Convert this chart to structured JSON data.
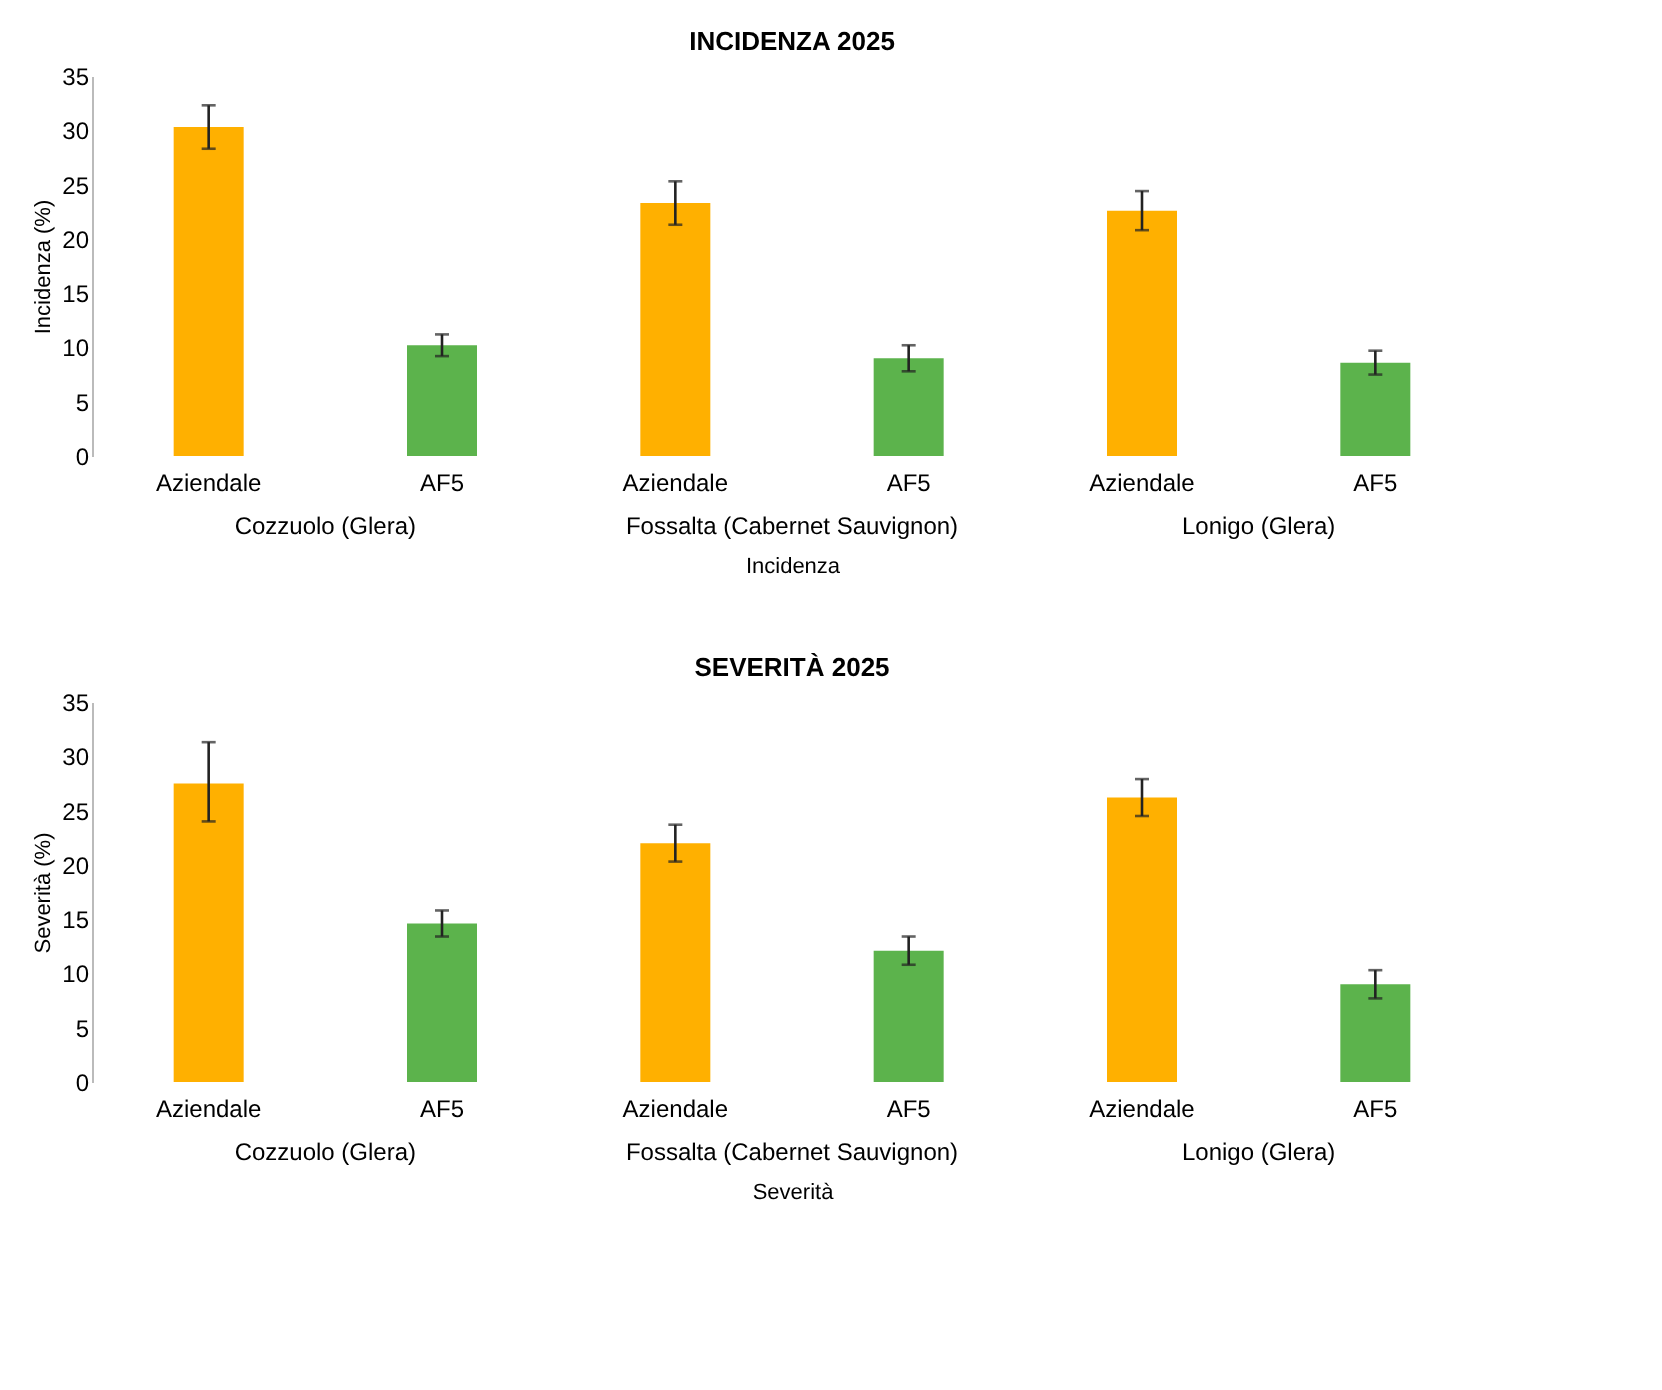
{
  "chart_data": [
    {
      "type": "bar",
      "title": "INCIDENZA 2025",
      "ylabel": "Incidenza (%)",
      "xlabel": "Incidenza",
      "categories": [
        "Aziendale",
        "AF5",
        "Aziendale",
        "AF5",
        "Aziendale",
        "AF5"
      ],
      "values": [
        30.3,
        10.2,
        23.3,
        9.0,
        22.6,
        8.6
      ],
      "errors": [
        2.0,
        1.0,
        2.0,
        1.2,
        1.8,
        1.1
      ],
      "colors": [
        "#ffb000",
        "#5cb34c",
        "#ffb000",
        "#5cb34c",
        "#ffb000",
        "#5cb34c"
      ],
      "annotations": [
        "Cozzuolo (Glera)",
        "Fossalta (Cabernet Sauvignon)",
        "Lonigo (Glera)"
      ],
      "ylim": [
        0,
        35
      ],
      "yticks": [
        0,
        5,
        10,
        15,
        20,
        25,
        30,
        35
      ],
      "grid": false
    },
    {
      "type": "bar",
      "title": "SEVERITÀ 2025",
      "ylabel": "Severità (%)",
      "xlabel": "Severità",
      "categories": [
        "Aziendale",
        "AF5",
        "Aziendale",
        "AF5",
        "Aziendale",
        "AF5"
      ],
      "values": [
        27.5,
        14.6,
        22.0,
        12.1,
        26.2,
        9.0
      ],
      "errors": [
        [
          24.0,
          31.3
        ],
        1.2,
        1.7,
        1.3,
        1.7,
        1.3
      ],
      "colors": [
        "#ffb000",
        "#5cb34c",
        "#ffb000",
        "#5cb34c",
        "#ffb000",
        "#5cb34c"
      ],
      "annotations": [
        "Cozzuolo (Glera)",
        "Fossalta (Cabernet Sauvignon)",
        "Lonigo (Glera)"
      ],
      "ylim": [
        0,
        35
      ],
      "yticks": [
        0,
        5,
        10,
        15,
        20,
        25,
        30,
        35
      ],
      "grid": false
    }
  ]
}
